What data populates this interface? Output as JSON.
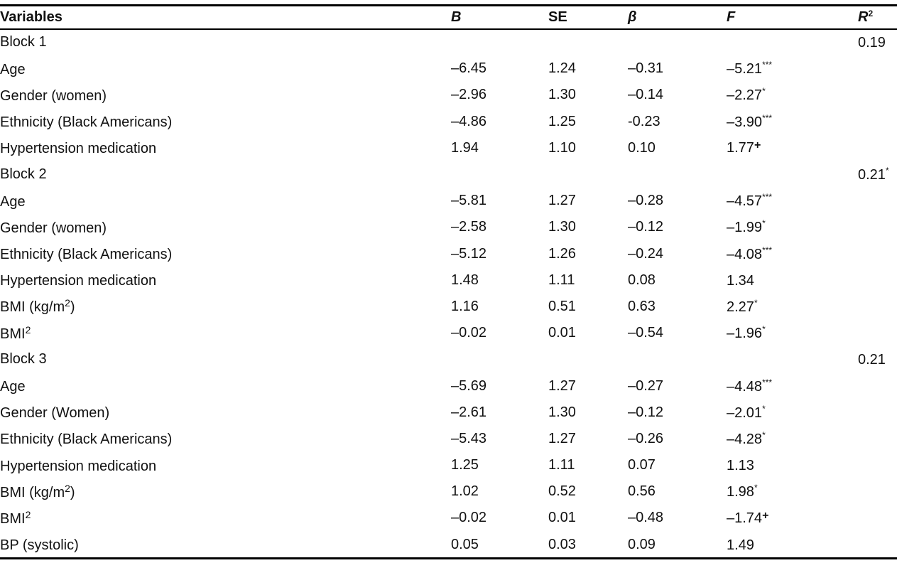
{
  "headers": {
    "variables": "Variables",
    "b": "B",
    "se": "SE",
    "beta": "β",
    "f": "F",
    "r2_base": "R",
    "r2_sup": "2"
  },
  "rows": [
    {
      "type": "block",
      "label": "Block 1",
      "r2": "0.19",
      "r2_sig": ""
    },
    {
      "type": "var",
      "label": "Age",
      "label_sup": "",
      "b": "–6.45",
      "se": "1.24",
      "beta": "–0.31",
      "f": "–5.21",
      "f_sig": "***"
    },
    {
      "type": "var",
      "label": "Gender (women)",
      "label_sup": "",
      "b": "–2.96",
      "se": "1.30",
      "beta": "–0.14",
      "f": "–2.27",
      "f_sig": "*"
    },
    {
      "type": "var",
      "label": "Ethnicity (Black Americans)",
      "label_sup": "",
      "b": "–4.86",
      "se": "1.25",
      "beta": "-0.23",
      "f": "–3.90",
      "f_sig": "***"
    },
    {
      "type": "var",
      "label": "Hypertension medication",
      "label_sup": "",
      "b": "1.94",
      "se": "1.10",
      "beta": "0.10",
      "f": "1.77",
      "f_sig": "+"
    },
    {
      "type": "block",
      "label": "Block 2",
      "r2": "0.21",
      "r2_sig": "*"
    },
    {
      "type": "var",
      "label": "Age",
      "label_sup": "",
      "b": "–5.81",
      "se": "1.27",
      "beta": "–0.28",
      "f": "–4.57",
      "f_sig": "***"
    },
    {
      "type": "var",
      "label": "Gender (women)",
      "label_sup": "",
      "b": "–2.58",
      "se": "1.30",
      "beta": "–0.12",
      "f": "–1.99",
      "f_sig": "*"
    },
    {
      "type": "var",
      "label": "Ethnicity (Black Americans)",
      "label_sup": "",
      "b": "–5.12",
      "se": "1.26",
      "beta": "–0.24",
      "f": "–4.08",
      "f_sig": "***"
    },
    {
      "type": "var",
      "label": "Hypertension medication",
      "label_sup": "",
      "b": "1.48",
      "se": "1.11",
      "beta": "0.08",
      "f": "1.34",
      "f_sig": ""
    },
    {
      "type": "var",
      "label": "BMI (kg/m",
      "label_sup": "2",
      "label_after": ")",
      "b": "1.16",
      "se": "0.51",
      "beta": "0.63",
      "f": "2.27",
      "f_sig": "*"
    },
    {
      "type": "var",
      "label": "BMI",
      "label_sup": "2",
      "b": "–0.02",
      "se": "0.01",
      "beta": "–0.54",
      "f": "–1.96",
      "f_sig": "*"
    },
    {
      "type": "block",
      "label": "Block 3",
      "r2": "0.21",
      "r2_sig": ""
    },
    {
      "type": "var",
      "label": "Age",
      "label_sup": "",
      "b": "–5.69",
      "se": "1.27",
      "beta": "–0.27",
      "f": "–4.48",
      "f_sig": "***"
    },
    {
      "type": "var",
      "label": "Gender (Women)",
      "label_sup": "",
      "b": "–2.61",
      "se": "1.30",
      "beta": "–0.12",
      "f": "–2.01",
      "f_sig": "*"
    },
    {
      "type": "var",
      "label": "Ethnicity (Black Americans)",
      "label_sup": "",
      "b": "–5.43",
      "se": "1.27",
      "beta": "–0.26",
      "f": "–4.28",
      "f_sig": "*"
    },
    {
      "type": "var",
      "label": "Hypertension medication",
      "label_sup": "",
      "b": "1.25",
      "se": "1.11",
      "beta": "0.07",
      "f": "1.13",
      "f_sig": ""
    },
    {
      "type": "var",
      "label": "BMI (kg/m",
      "label_sup": "2",
      "label_after": ")",
      "b": "1.02",
      "se": "0.52",
      "beta": "0.56",
      "f": "1.98",
      "f_sig": "*"
    },
    {
      "type": "var",
      "label": "BMI",
      "label_sup": "2",
      "b": "–0.02",
      "se": "0.01",
      "beta": "–0.48",
      "f": "–1.74",
      "f_sig": "+"
    },
    {
      "type": "var",
      "label": "BP (systolic)",
      "label_sup": "",
      "b": "0.05",
      "se": "0.03",
      "beta": "0.09",
      "f": "1.49",
      "f_sig": ""
    }
  ]
}
